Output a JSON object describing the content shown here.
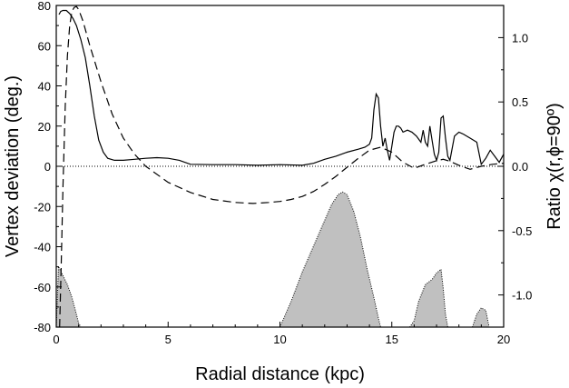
{
  "chart_data": {
    "type": "line",
    "xlabel": "Radial distance (kpc)",
    "ylabel": "Vertex deviation (deg.)",
    "y2label": "Ratio χ(r,ϕ=90º)",
    "xlim": [
      0,
      20
    ],
    "ylim": [
      -80,
      80
    ],
    "y2lim": [
      -1.25,
      1.25
    ],
    "x_ticks": [
      0,
      5,
      10,
      15,
      20
    ],
    "y_ticks": [
      -80,
      -60,
      -40,
      -20,
      0,
      20,
      40,
      60,
      80
    ],
    "y2_ticks": [
      -1.0,
      -0.5,
      0.0,
      0.5,
      1.0
    ],
    "y2_tick_labels": [
      "-1.0",
      "-0.5",
      "0.0",
      "0.5",
      "1.0"
    ],
    "grid": false,
    "reference_line_y": 0,
    "series": [
      {
        "style": "solid",
        "axis": "left",
        "x": [
          0.12,
          0.2,
          0.3,
          0.45,
          0.6,
          0.75,
          0.9,
          1.1,
          1.3,
          1.5,
          1.7,
          1.9,
          2.1,
          2.3,
          2.6,
          3.0,
          3.5,
          4.0,
          4.5,
          5.0,
          5.5,
          6.0,
          7.0,
          8.0,
          9.0,
          10.0,
          11.0,
          11.5,
          12.0,
          12.5,
          13.0,
          13.5,
          13.8,
          14.0,
          14.1,
          14.2,
          14.3,
          14.4,
          14.5,
          14.6,
          14.7,
          14.8,
          14.9,
          15.0,
          15.1,
          15.2,
          15.3,
          15.4,
          15.5,
          15.7,
          15.9,
          16.1,
          16.3,
          16.4,
          16.5,
          16.6,
          16.7,
          16.8,
          16.9,
          17.0,
          17.1,
          17.2,
          17.3,
          17.4,
          17.5,
          17.6,
          17.8,
          18.0,
          18.2,
          18.5,
          18.8,
          19.0,
          19.2,
          19.4,
          19.6,
          19.8,
          20.0
        ],
        "y": [
          75.5,
          77,
          77.5,
          77.5,
          76,
          73.5,
          70,
          63,
          54,
          40,
          25,
          13,
          7,
          4,
          3,
          3,
          3.5,
          4,
          4.3,
          4,
          3,
          1,
          0.8,
          0.8,
          0.5,
          0.8,
          0.5,
          1.5,
          3.5,
          5,
          7,
          8.5,
          9.5,
          11,
          14,
          28,
          36,
          34,
          20,
          10,
          14,
          8,
          3,
          10,
          17,
          20,
          20,
          19,
          17,
          18,
          17,
          15,
          12,
          18,
          12,
          10,
          20,
          13,
          6,
          3,
          7,
          24,
          25,
          14,
          5,
          3,
          15,
          17,
          16,
          14,
          12,
          1,
          4,
          8,
          5,
          2,
          6
        ]
      },
      {
        "style": "dashed",
        "axis": "left",
        "x": [
          0.15,
          0.22,
          0.3,
          0.4,
          0.5,
          0.6,
          0.7,
          0.8,
          0.9,
          1.0,
          1.2,
          1.5,
          2.0,
          2.5,
          3.0,
          3.5,
          4.0,
          5.0,
          6.0,
          7.0,
          8.0,
          8.8,
          9.5,
          10.0,
          10.5,
          11.0,
          11.5,
          12.0,
          12.5,
          13.0,
          13.5,
          14.0,
          14.5,
          15.0,
          15.5,
          16.0,
          16.5,
          17.0,
          17.3,
          17.6,
          18.0,
          18.5,
          19.0,
          19.5,
          20.0
        ],
        "y": [
          -80,
          -50,
          -10,
          30,
          55,
          70,
          77,
          79,
          79.5,
          78,
          72,
          60,
          42,
          26,
          14,
          6,
          0,
          -8,
          -13,
          -16.5,
          -18,
          -18.5,
          -18,
          -17.5,
          -16.5,
          -15,
          -12.5,
          -9,
          -5,
          -0.5,
          4,
          8,
          9.5,
          7,
          2,
          -1,
          1,
          2.8,
          3.5,
          2.5,
          0.5,
          -1.5,
          0,
          1,
          1.5
        ]
      }
    ],
    "filled_area": {
      "axis": "right",
      "baseline": -1.25,
      "fill": "#c0c0c0",
      "regions": [
        {
          "x": [
            0.0,
            0.1,
            0.3,
            0.5,
            0.7,
            0.9,
            1.0,
            1.1
          ],
          "y": [
            -1.25,
            -0.78,
            -0.85,
            -0.92,
            -1.02,
            -1.15,
            -1.22,
            -1.25
          ]
        },
        {
          "x": [
            10.0,
            10.5,
            11.0,
            11.5,
            12.0,
            12.3,
            12.6,
            12.8,
            13.0,
            13.3,
            13.6,
            13.9,
            14.2,
            14.4,
            14.5
          ],
          "y": [
            -1.25,
            -1.05,
            -0.82,
            -0.62,
            -0.42,
            -0.3,
            -0.22,
            -0.2,
            -0.22,
            -0.35,
            -0.55,
            -0.8,
            -1.02,
            -1.18,
            -1.25
          ]
        },
        {
          "x": [
            15.8,
            16.0,
            16.2,
            16.5,
            16.8,
            17.0,
            17.2,
            17.3,
            17.4,
            17.5
          ],
          "y": [
            -1.25,
            -1.2,
            -1.05,
            -0.92,
            -0.88,
            -0.83,
            -0.8,
            -0.95,
            -1.15,
            -1.25
          ]
        },
        {
          "x": [
            18.6,
            18.8,
            19.0,
            19.2,
            19.35
          ],
          "y": [
            -1.25,
            -1.15,
            -1.1,
            -1.12,
            -1.25
          ]
        }
      ]
    }
  }
}
